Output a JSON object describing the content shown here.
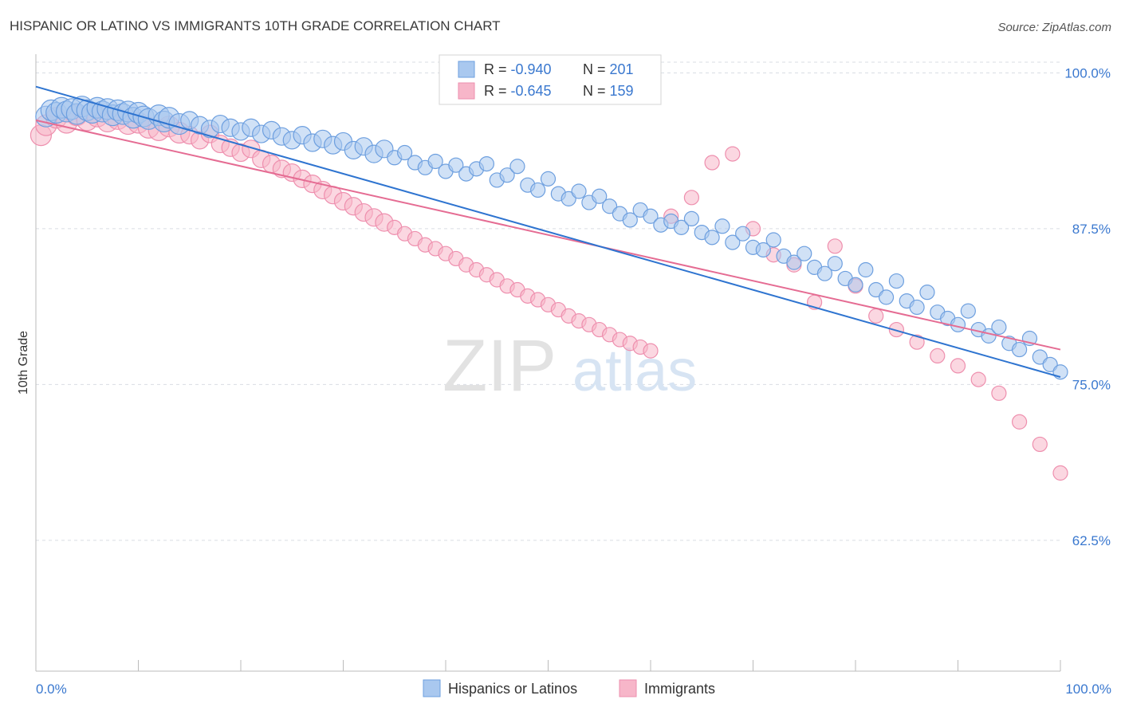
{
  "header": {
    "title": "HISPANIC OR LATINO VS IMMIGRANTS 10TH GRADE CORRELATION CHART",
    "source": "Source: ZipAtlas.com"
  },
  "watermark": {
    "zip": "ZIP",
    "atlas": "atlas"
  },
  "colors": {
    "blue_fill": "#a9c8ef",
    "blue_stroke": "#6d9fdf",
    "blue_line": "#2e74d0",
    "pink_fill": "#f7b6c9",
    "pink_stroke": "#ee8fae",
    "pink_line": "#e56c93",
    "axis_label_blue": "#3a78cf",
    "grid": "#d9dde3"
  },
  "stats_box": {
    "rows": [
      {
        "r_label": "R = ",
        "r_value": "-0.940",
        "n_label": "N = ",
        "n_value": "201"
      },
      {
        "r_label": "R = ",
        "r_value": "-0.645",
        "n_label": "N = ",
        "n_value": "159"
      }
    ]
  },
  "chart_data": {
    "type": "scatter",
    "title": "HISPANIC OR LATINO VS IMMIGRANTS 10TH GRADE CORRELATION CHART",
    "xlabel": "",
    "ylabel": "10th Grade",
    "xlim": [
      0,
      100
    ],
    "ylim": [
      52.0,
      101.5
    ],
    "x_tick_labels": [
      "0.0%",
      "100.0%"
    ],
    "y_ticks": [
      {
        "value": 100.0,
        "label": "100.0%"
      },
      {
        "value": 87.5,
        "label": "87.5%"
      },
      {
        "value": 75.0,
        "label": "75.0%"
      },
      {
        "value": 62.5,
        "label": "62.5%"
      }
    ],
    "legend_position": "bottom-center",
    "grid": true,
    "series": [
      {
        "name": "Hispanics or Latinos",
        "color": "#a9c8ef",
        "r": -0.94,
        "n": 201,
        "trend": {
          "x": [
            0,
            100
          ],
          "y": [
            98.9,
            75.6
          ]
        },
        "points": [
          [
            1,
            96.5
          ],
          [
            1.5,
            97
          ],
          [
            2,
            96.8
          ],
          [
            2.5,
            97.2
          ],
          [
            3,
            96.9
          ],
          [
            3.5,
            97.1
          ],
          [
            4,
            96.7
          ],
          [
            4.5,
            97.3
          ],
          [
            5,
            97.0
          ],
          [
            5.5,
            96.8
          ],
          [
            6,
            97.2
          ],
          [
            6.5,
            96.9
          ],
          [
            7,
            97.1
          ],
          [
            7.5,
            96.6
          ],
          [
            8,
            97.0
          ],
          [
            8.5,
            96.7
          ],
          [
            9,
            96.9
          ],
          [
            9.5,
            96.4
          ],
          [
            10,
            96.8
          ],
          [
            10.5,
            96.5
          ],
          [
            11,
            96.3
          ],
          [
            12,
            96.6
          ],
          [
            12.5,
            96.1
          ],
          [
            13,
            96.4
          ],
          [
            14,
            95.9
          ],
          [
            15,
            96.2
          ],
          [
            16,
            95.8
          ],
          [
            17,
            95.5
          ],
          [
            18,
            95.9
          ],
          [
            19,
            95.6
          ],
          [
            20,
            95.3
          ],
          [
            21,
            95.6
          ],
          [
            22,
            95.1
          ],
          [
            23,
            95.4
          ],
          [
            24,
            94.9
          ],
          [
            25,
            94.6
          ],
          [
            26,
            95.0
          ],
          [
            27,
            94.4
          ],
          [
            28,
            94.7
          ],
          [
            29,
            94.2
          ],
          [
            30,
            94.5
          ],
          [
            31,
            93.8
          ],
          [
            32,
            94.1
          ],
          [
            33,
            93.5
          ],
          [
            34,
            93.9
          ],
          [
            35,
            93.2
          ],
          [
            36,
            93.6
          ],
          [
            37,
            92.8
          ],
          [
            38,
            92.4
          ],
          [
            39,
            92.9
          ],
          [
            40,
            92.1
          ],
          [
            41,
            92.6
          ],
          [
            42,
            91.9
          ],
          [
            43,
            92.3
          ],
          [
            44,
            92.7
          ],
          [
            45,
            91.4
          ],
          [
            46,
            91.8
          ],
          [
            47,
            92.5
          ],
          [
            48,
            91.0
          ],
          [
            49,
            90.6
          ],
          [
            50,
            91.5
          ],
          [
            51,
            90.3
          ],
          [
            52,
            89.9
          ],
          [
            53,
            90.5
          ],
          [
            54,
            89.6
          ],
          [
            55,
            90.1
          ],
          [
            56,
            89.3
          ],
          [
            57,
            88.7
          ],
          [
            58,
            88.2
          ],
          [
            59,
            89.0
          ],
          [
            60,
            88.5
          ],
          [
            61,
            87.8
          ],
          [
            62,
            88.1
          ],
          [
            63,
            87.6
          ],
          [
            64,
            88.3
          ],
          [
            65,
            87.2
          ],
          [
            66,
            86.8
          ],
          [
            67,
            87.7
          ],
          [
            68,
            86.4
          ],
          [
            69,
            87.1
          ],
          [
            70,
            86.0
          ],
          [
            71,
            85.8
          ],
          [
            72,
            86.6
          ],
          [
            73,
            85.3
          ],
          [
            74,
            84.8
          ],
          [
            75,
            85.5
          ],
          [
            76,
            84.4
          ],
          [
            77,
            83.9
          ],
          [
            78,
            84.7
          ],
          [
            79,
            83.5
          ],
          [
            80,
            83.0
          ],
          [
            81,
            84.2
          ],
          [
            82,
            82.6
          ],
          [
            83,
            82.0
          ],
          [
            84,
            83.3
          ],
          [
            85,
            81.7
          ],
          [
            86,
            81.2
          ],
          [
            87,
            82.4
          ],
          [
            88,
            80.8
          ],
          [
            89,
            80.3
          ],
          [
            90,
            79.8
          ],
          [
            91,
            80.9
          ],
          [
            92,
            79.4
          ],
          [
            93,
            78.9
          ],
          [
            94,
            79.6
          ],
          [
            95,
            78.3
          ],
          [
            96,
            77.8
          ],
          [
            97,
            78.7
          ],
          [
            98,
            77.2
          ],
          [
            99,
            76.6
          ],
          [
            100,
            76.0
          ]
        ]
      },
      {
        "name": "Immigrants",
        "color": "#f7b6c9",
        "r": -0.645,
        "n": 159,
        "trend": {
          "x": [
            0,
            100
          ],
          "y": [
            96.2,
            77.8
          ]
        },
        "points": [
          [
            0.5,
            95.0
          ],
          [
            1,
            95.8
          ],
          [
            2,
            96.4
          ],
          [
            3,
            96.0
          ],
          [
            4,
            96.6
          ],
          [
            5,
            96.2
          ],
          [
            6,
            96.5
          ],
          [
            7,
            96.1
          ],
          [
            8,
            96.3
          ],
          [
            9,
            95.9
          ],
          [
            10,
            96.0
          ],
          [
            11,
            95.6
          ],
          [
            12,
            95.4
          ],
          [
            13,
            95.7
          ],
          [
            14,
            95.2
          ],
          [
            15,
            95.0
          ],
          [
            16,
            94.6
          ],
          [
            17,
            95.1
          ],
          [
            18,
            94.3
          ],
          [
            19,
            94.0
          ],
          [
            20,
            93.6
          ],
          [
            21,
            93.9
          ],
          [
            22,
            93.1
          ],
          [
            23,
            92.7
          ],
          [
            24,
            92.3
          ],
          [
            25,
            92.0
          ],
          [
            26,
            91.5
          ],
          [
            27,
            91.1
          ],
          [
            28,
            90.6
          ],
          [
            29,
            90.2
          ],
          [
            30,
            89.7
          ],
          [
            31,
            89.3
          ],
          [
            32,
            88.8
          ],
          [
            33,
            88.4
          ],
          [
            34,
            88.0
          ],
          [
            35,
            87.6
          ],
          [
            36,
            87.1
          ],
          [
            37,
            86.7
          ],
          [
            38,
            86.2
          ],
          [
            39,
            85.9
          ],
          [
            40,
            85.5
          ],
          [
            41,
            85.1
          ],
          [
            42,
            84.6
          ],
          [
            43,
            84.2
          ],
          [
            44,
            83.8
          ],
          [
            45,
            83.4
          ],
          [
            46,
            82.9
          ],
          [
            47,
            82.6
          ],
          [
            48,
            82.1
          ],
          [
            49,
            81.8
          ],
          [
            50,
            81.4
          ],
          [
            51,
            81.0
          ],
          [
            52,
            80.5
          ],
          [
            53,
            80.1
          ],
          [
            54,
            79.8
          ],
          [
            55,
            79.4
          ],
          [
            56,
            79.0
          ],
          [
            57,
            78.6
          ],
          [
            58,
            78.3
          ],
          [
            59,
            78.0
          ],
          [
            60,
            77.7
          ],
          [
            62,
            88.5
          ],
          [
            64,
            90.0
          ],
          [
            66,
            92.8
          ],
          [
            68,
            93.5
          ],
          [
            70,
            87.5
          ],
          [
            72,
            85.4
          ],
          [
            74,
            84.6
          ],
          [
            76,
            81.6
          ],
          [
            78,
            86.1
          ],
          [
            80,
            82.9
          ],
          [
            82,
            80.5
          ],
          [
            84,
            79.4
          ],
          [
            86,
            78.4
          ],
          [
            88,
            77.3
          ],
          [
            90,
            76.5
          ],
          [
            92,
            75.4
          ],
          [
            94,
            74.3
          ],
          [
            96,
            72.0
          ],
          [
            98,
            70.2
          ],
          [
            100,
            67.9
          ]
        ]
      }
    ]
  },
  "legend": {
    "items": [
      {
        "label": "Hispanics or Latinos"
      },
      {
        "label": "Immigrants"
      }
    ]
  }
}
